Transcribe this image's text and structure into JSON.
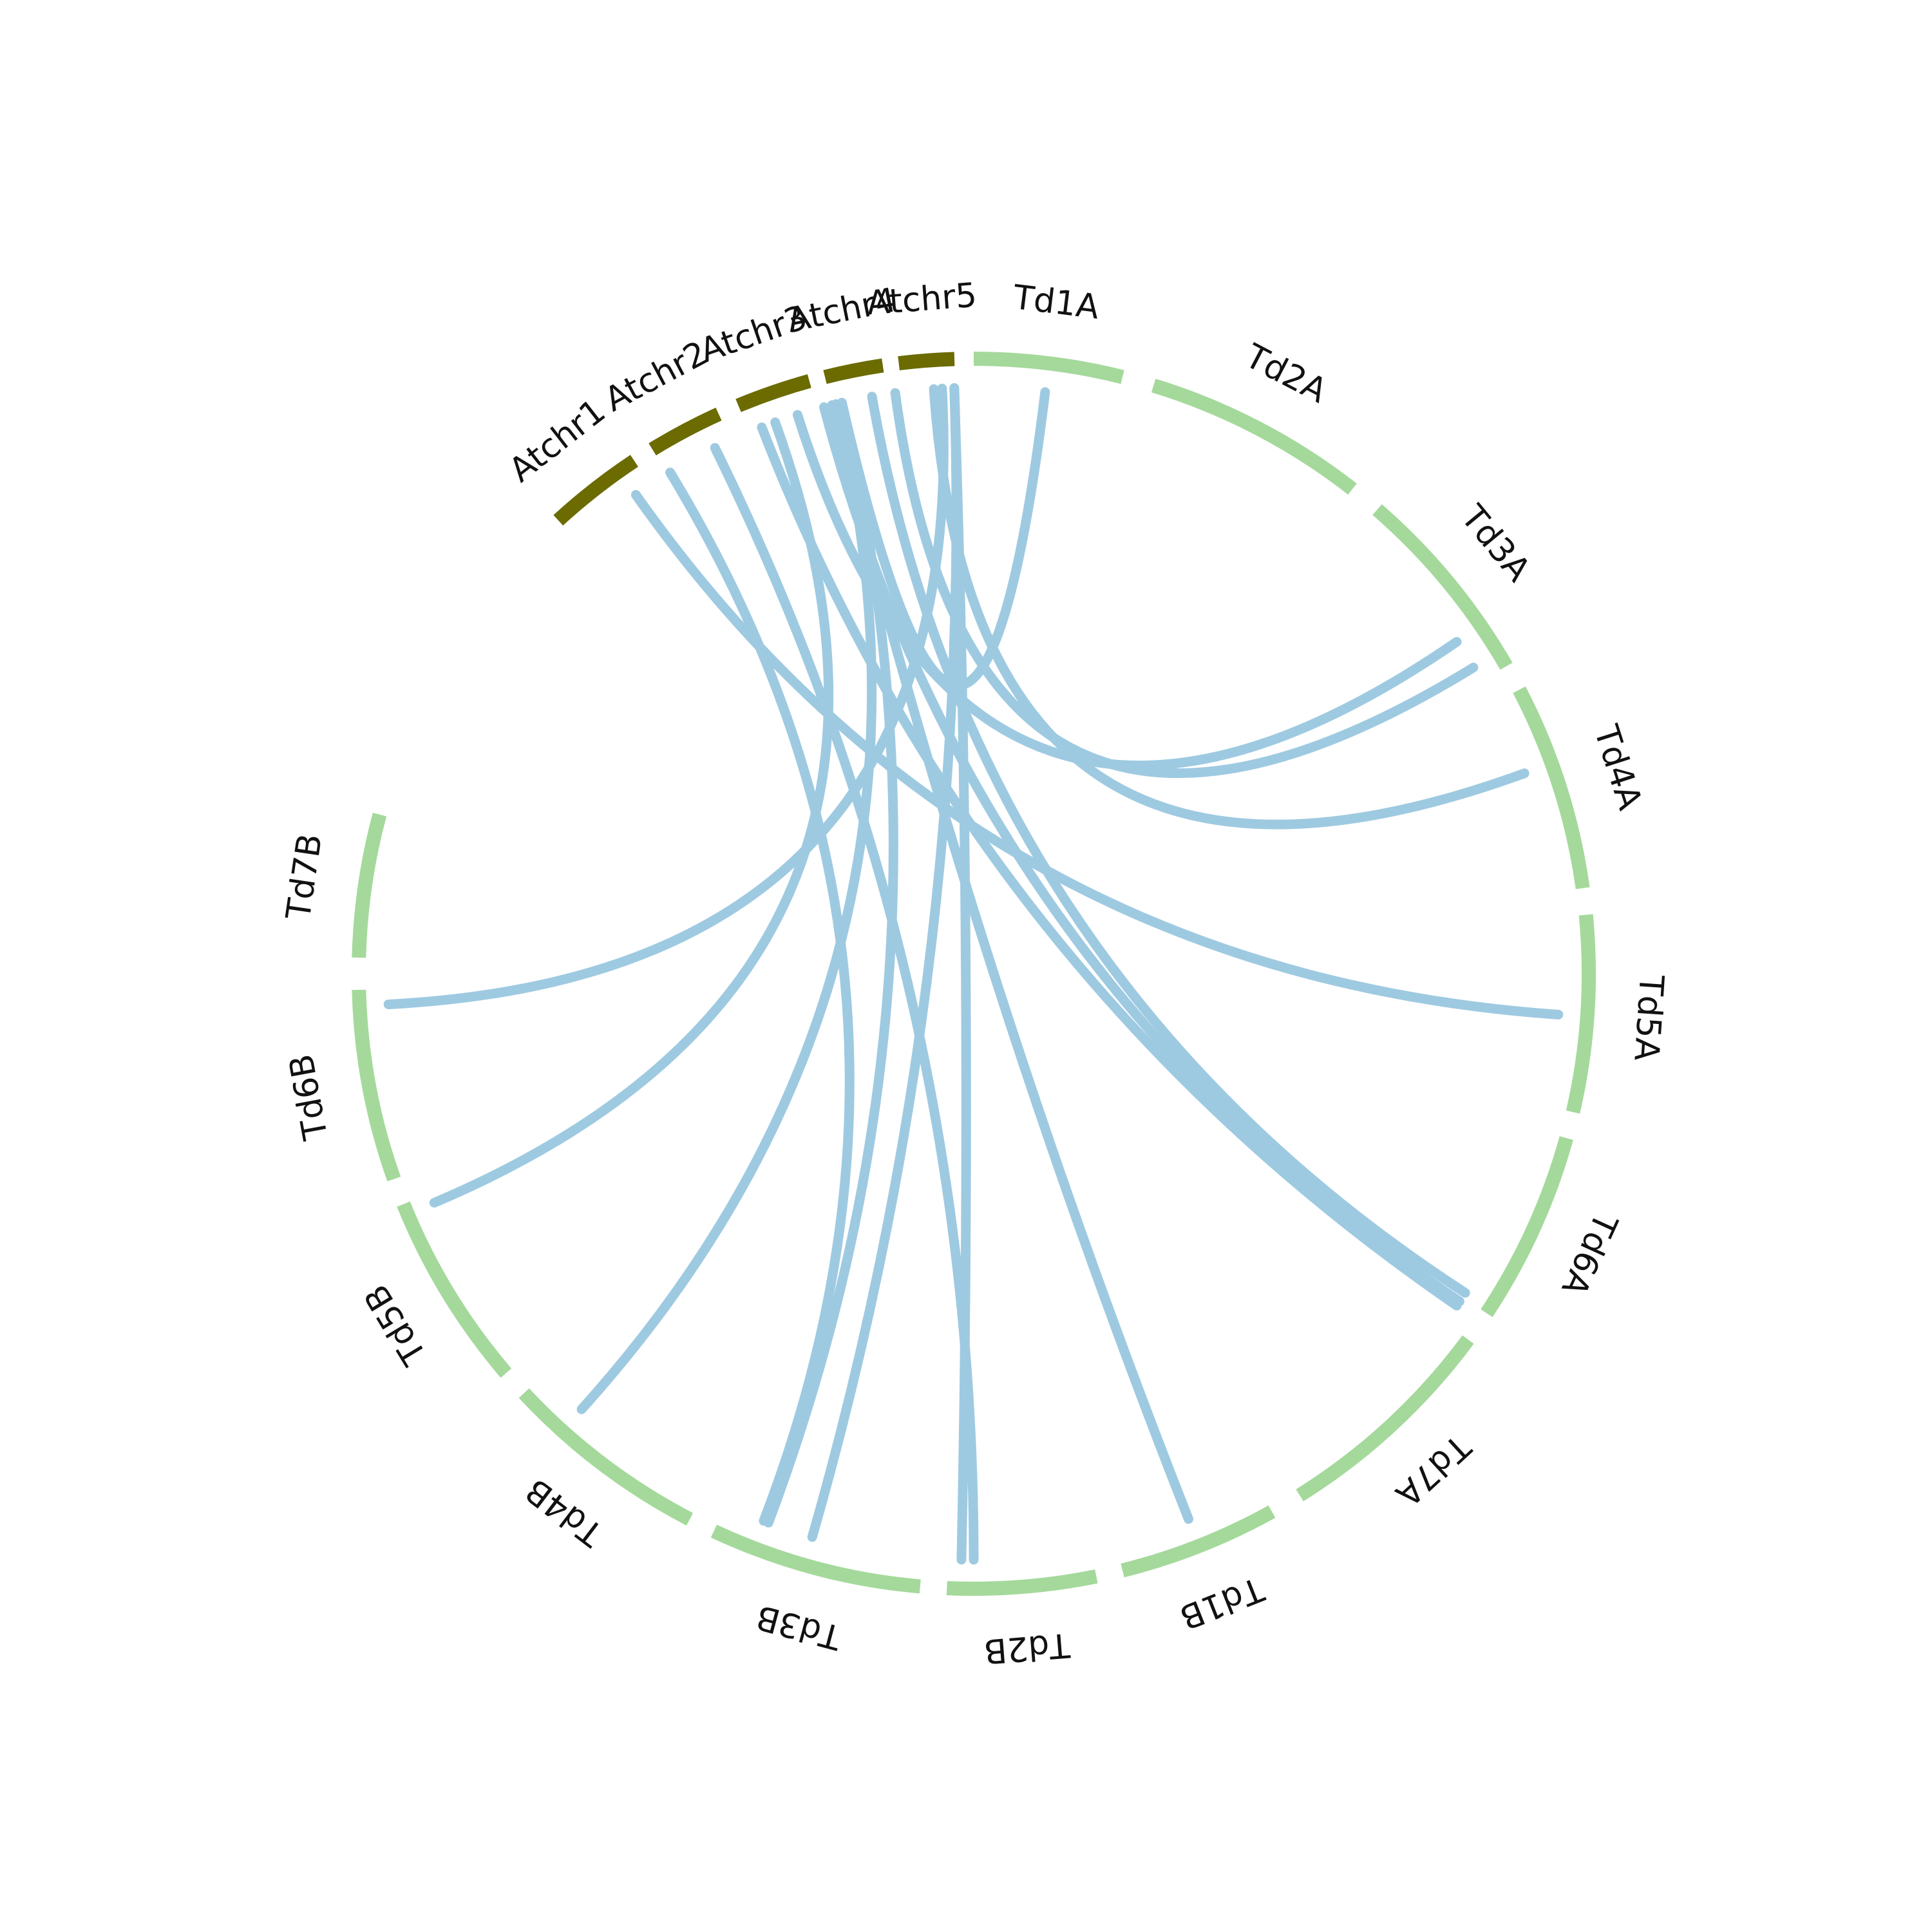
{
  "colors": {
    "arabidopsis": "#6b6b00",
    "durum": "#a4d99b",
    "link": "#9ecae1",
    "text": "#111111"
  },
  "chromosomes": [
    {
      "name": "Atchr1",
      "group": "arabidopsis"
    },
    {
      "name": "Atchr2",
      "group": "arabidopsis"
    },
    {
      "name": "Atchr3",
      "group": "arabidopsis"
    },
    {
      "name": "Atchr4",
      "group": "arabidopsis"
    },
    {
      "name": "Atchr5",
      "group": "arabidopsis"
    },
    {
      "name": "Td1A",
      "group": "durum"
    },
    {
      "name": "Td2A",
      "group": "durum"
    },
    {
      "name": "Td3A",
      "group": "durum"
    },
    {
      "name": "Td4A",
      "group": "durum"
    },
    {
      "name": "Td5A",
      "group": "durum"
    },
    {
      "name": "Td6A",
      "group": "durum"
    },
    {
      "name": "Td7A",
      "group": "durum"
    },
    {
      "name": "Td1B",
      "group": "durum"
    },
    {
      "name": "Td2B",
      "group": "durum"
    },
    {
      "name": "Td3B",
      "group": "durum"
    },
    {
      "name": "Td4B",
      "group": "durum"
    },
    {
      "name": "Td5B",
      "group": "durum"
    },
    {
      "name": "Td6B",
      "group": "durum"
    },
    {
      "name": "Td7B",
      "group": "durum"
    }
  ],
  "links": [
    {
      "from": "Atchr1",
      "to": "Td5A"
    },
    {
      "from": "Atchr1",
      "to": "Td3B"
    },
    {
      "from": "Atchr2",
      "to": "Td2B"
    },
    {
      "from": "Atchr2",
      "to": "Td6A"
    },
    {
      "from": "Atchr3",
      "to": "Td5B"
    },
    {
      "from": "Atchr3",
      "to": "Td3A"
    },
    {
      "from": "Atchr3",
      "to": "Td6A"
    },
    {
      "from": "Atchr3",
      "to": "Td1B"
    },
    {
      "from": "Atchr3",
      "to": "Td4B"
    },
    {
      "from": "Atchr3",
      "to": "Td3B"
    },
    {
      "from": "Atchr3",
      "to": "Td1A"
    },
    {
      "from": "Atchr4",
      "to": "Td6A"
    },
    {
      "from": "Atchr5",
      "to": "Td3A"
    },
    {
      "from": "Atchr5",
      "to": "Td4A"
    },
    {
      "from": "Atchr5",
      "to": "Td6B"
    },
    {
      "from": "Atchr5",
      "to": "Td2B"
    },
    {
      "from": "Atchr5",
      "to": "Td3B"
    }
  ]
}
